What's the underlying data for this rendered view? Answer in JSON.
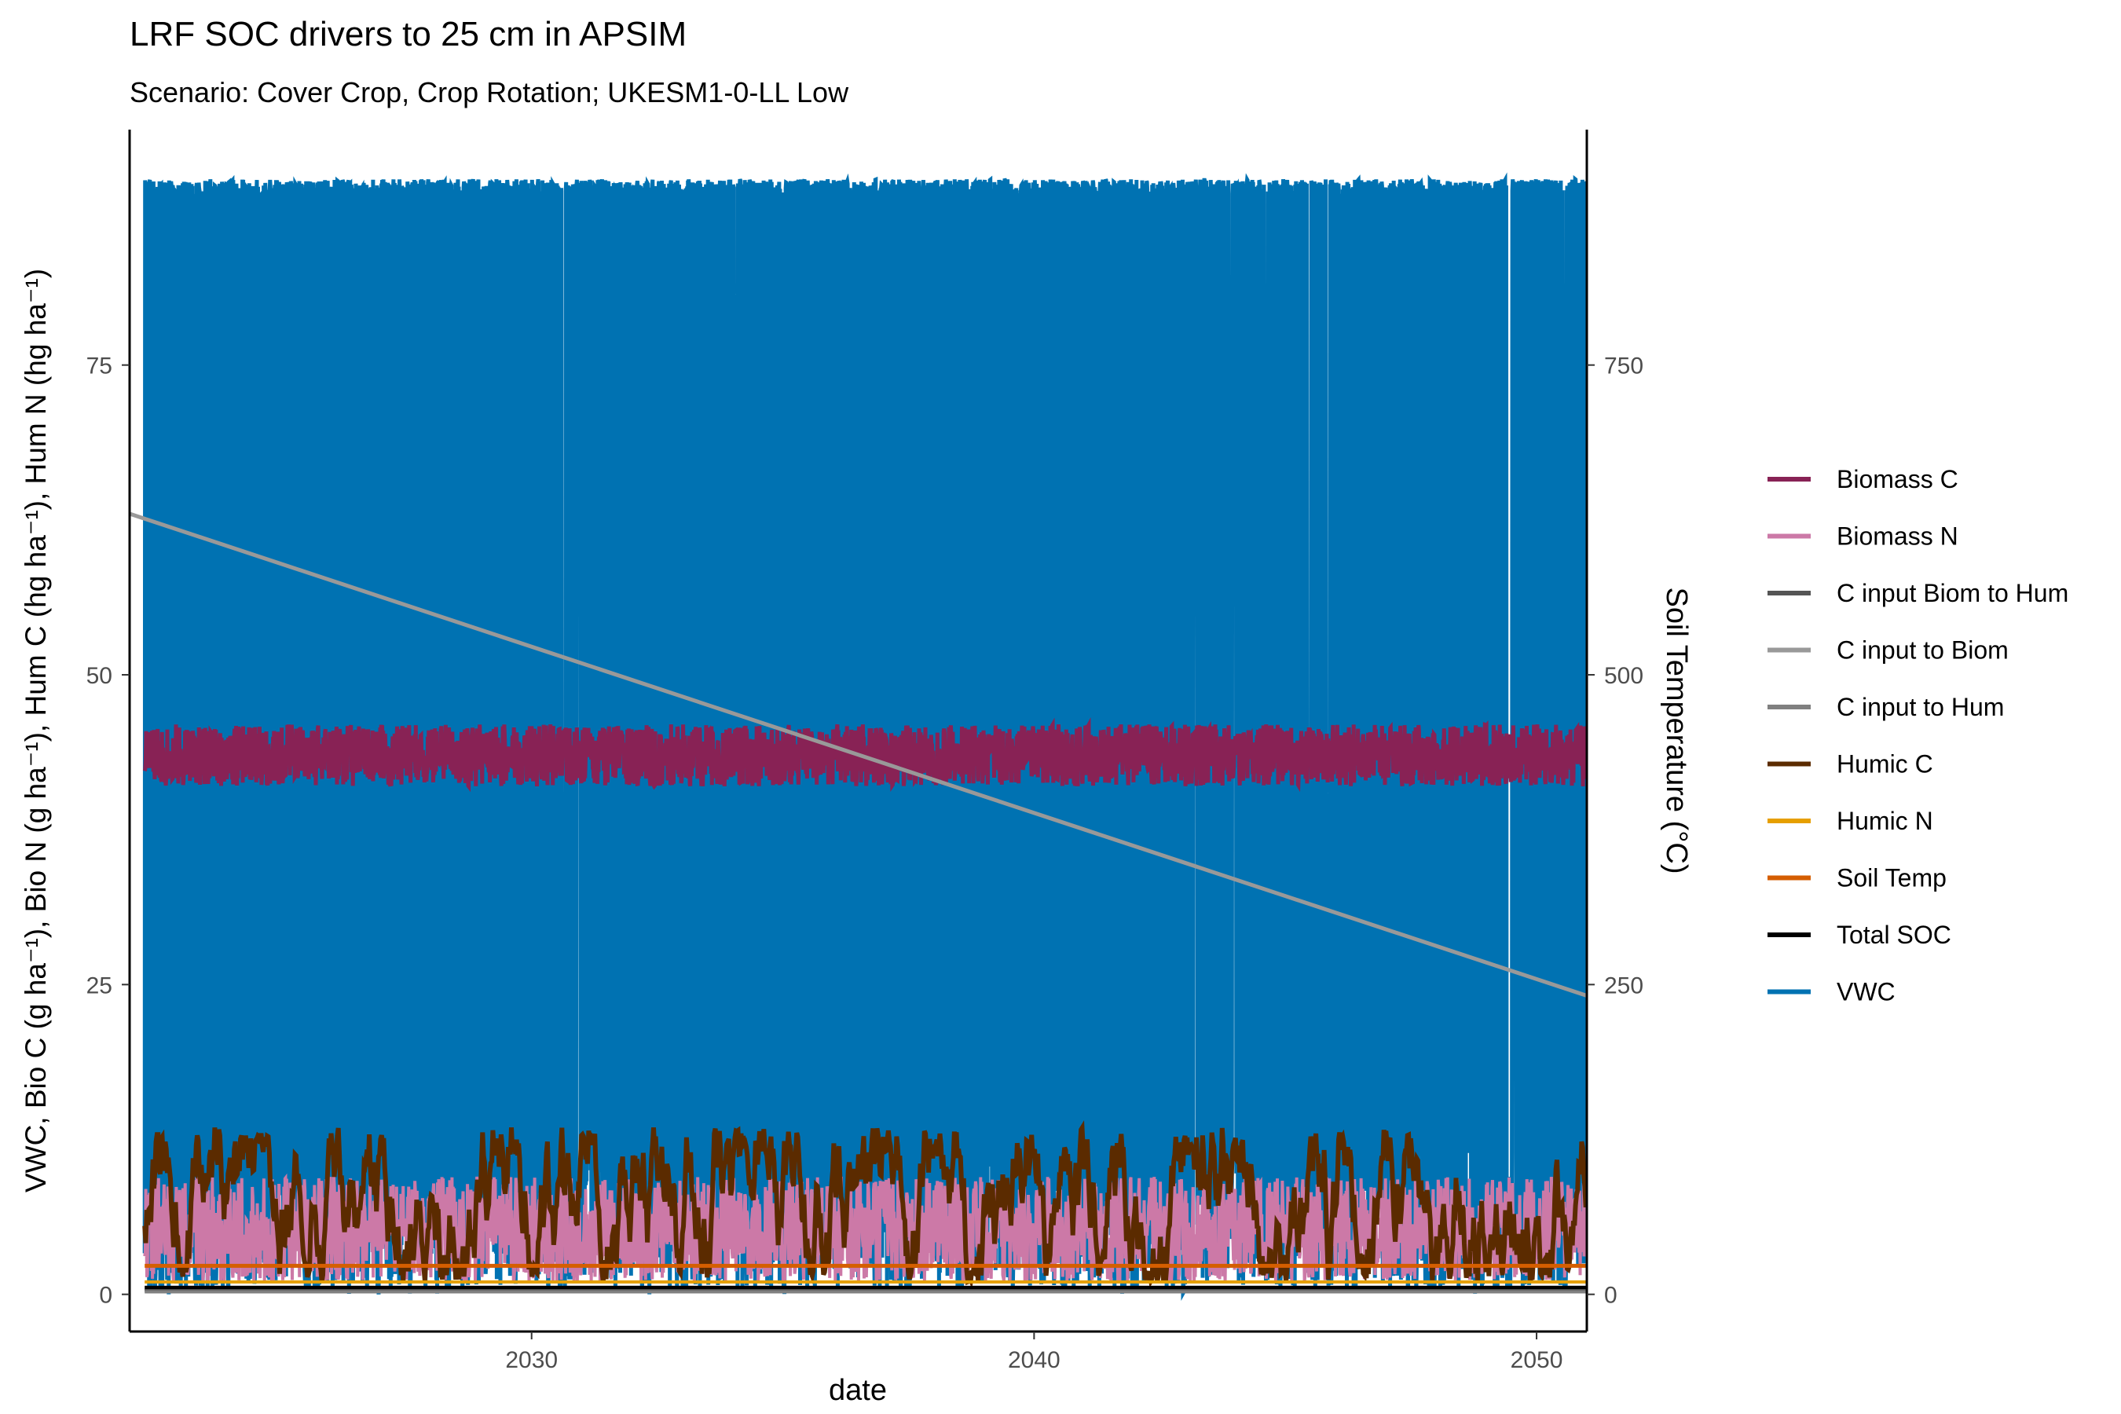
{
  "chart_data": {
    "type": "line",
    "title": "LRF SOC drivers to 25 cm in APSIM",
    "subtitle": "Scenario: Cover Crop, Crop Rotation; UKESM1-0-LL Low",
    "xlabel": "date",
    "ylabel_left": "VWC, Bio C (g ha⁻¹), Bio N (g ha⁻¹), Hum C (hg ha⁻¹), Hum N (hg ha⁻¹)",
    "ylabel_right": "Soil Temperature (°C)",
    "x_ticks": [
      "2030",
      "2040",
      "2050"
    ],
    "y_left_ticks": [
      "0",
      "25",
      "50",
      "75"
    ],
    "y_right_ticks": [
      "0",
      "250",
      "500",
      "750"
    ],
    "xlim": [
      2022,
      2051
    ],
    "ylim_left": [
      -3,
      94
    ],
    "ylim_right": [
      -30,
      940
    ],
    "legend_position": "right",
    "grid": false,
    "series": [
      {
        "name": "Biomass C",
        "color": "#882255",
        "range": [
          41,
          46
        ],
        "note_values": "dense seasonal oscillation 2022-2051"
      },
      {
        "name": "Biomass N",
        "color": "#CC79A7",
        "range": [
          0,
          10
        ]
      },
      {
        "name": "C input Biom to Hum",
        "color": "#555555",
        "values_approx": 0.3
      },
      {
        "name": "C input to Biom",
        "color": "#999999",
        "x": [
          2022,
          2051
        ],
        "y_right": [
          630,
          241
        ]
      },
      {
        "name": "C input to Hum",
        "color": "#808080",
        "values_approx": 0.2
      },
      {
        "name": "Humic C",
        "color": "#5B2B00",
        "range": [
          0,
          14
        ]
      },
      {
        "name": "Humic N",
        "color": "#E69F00",
        "values_approx": 1.0
      },
      {
        "name": "Soil Temp",
        "color": "#D55E00",
        "values_approx": 2.3
      },
      {
        "name": "Total SOC",
        "color": "#000000",
        "values_approx": 0.5
      },
      {
        "name": "VWC",
        "color": "#0072B2",
        "range": [
          0,
          90
        ]
      }
    ]
  }
}
